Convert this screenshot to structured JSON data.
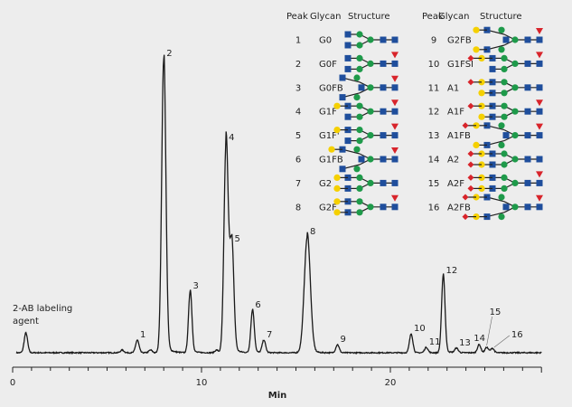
{
  "chart_data": {
    "type": "line",
    "title": "",
    "xlabel": "Min",
    "ylabel": "",
    "xlim": [
      0,
      28
    ],
    "xticks_major": [
      0,
      10,
      20
    ],
    "xtick_minor_step": 1,
    "grid": false,
    "colors": {
      "trace": "#1a1a1a",
      "background": "#ededed"
    },
    "annotation": "2-AB labeling agent",
    "reagent_peak": {
      "x": 0.7,
      "y": 22
    },
    "minor_peaks": [
      {
        "x": 5.8,
        "y": 3
      },
      {
        "x": 7.3,
        "y": 3
      },
      {
        "x": 10.8,
        "y": 3
      }
    ],
    "peaks": [
      {
        "label": "1",
        "x": 6.6,
        "y": 14
      },
      {
        "label": "2",
        "x": 8.0,
        "y": 325
      },
      {
        "label": "3",
        "x": 9.4,
        "y": 68
      },
      {
        "label": "4",
        "x": 11.3,
        "y": 232
      },
      {
        "label": "5",
        "x": 11.6,
        "y": 120
      },
      {
        "label": "6",
        "x": 12.7,
        "y": 47
      },
      {
        "label": "7",
        "x": 13.3,
        "y": 14
      },
      {
        "label": "8",
        "x": 15.6,
        "y": 128
      },
      {
        "label": "9",
        "x": 17.2,
        "y": 9
      },
      {
        "label": "10",
        "x": 21.1,
        "y": 21
      },
      {
        "label": "11",
        "x": 21.9,
        "y": 6
      },
      {
        "label": "12",
        "x": 22.8,
        "y": 85
      },
      {
        "label": "13",
        "x": 23.5,
        "y": 5
      },
      {
        "label": "14",
        "x": 24.7,
        "y": 9
      },
      {
        "label": "15",
        "x": 25.1,
        "y": 6
      },
      {
        "label": "16",
        "x": 25.4,
        "y": 5
      }
    ]
  },
  "legend_table": {
    "headers": {
      "peak": "Peak",
      "glycan": "Glycan",
      "structure": "Structure"
    },
    "symbol_colors": {
      "glcnac": "#1f4e9c",
      "mannose": "#1e9a4a",
      "galactose": "#f5d000",
      "fucose": "#d8242b",
      "sialic": "#d8242b"
    },
    "rows": [
      {
        "peak": "1",
        "glycan": "G0",
        "structure": {
          "fuc": false,
          "bisect": false,
          "gal": 0,
          "sia": 0
        }
      },
      {
        "peak": "2",
        "glycan": "G0F",
        "structure": {
          "fuc": true,
          "bisect": false,
          "gal": 0,
          "sia": 0
        }
      },
      {
        "peak": "3",
        "glycan": "G0FB",
        "structure": {
          "fuc": true,
          "bisect": true,
          "gal": 0,
          "sia": 0
        }
      },
      {
        "peak": "4",
        "glycan": "G1F",
        "structure": {
          "fuc": true,
          "bisect": false,
          "gal": 1,
          "sia": 0
        }
      },
      {
        "peak": "5",
        "glycan": "G1F'",
        "structure": {
          "fuc": true,
          "bisect": false,
          "gal": 1,
          "sia": 0
        }
      },
      {
        "peak": "6",
        "glycan": "G1FB",
        "structure": {
          "fuc": true,
          "bisect": true,
          "gal": 1,
          "sia": 0
        }
      },
      {
        "peak": "7",
        "glycan": "G2",
        "structure": {
          "fuc": false,
          "bisect": false,
          "gal": 2,
          "sia": 0
        }
      },
      {
        "peak": "8",
        "glycan": "G2F",
        "structure": {
          "fuc": true,
          "bisect": false,
          "gal": 2,
          "sia": 0
        }
      },
      {
        "peak": "9",
        "glycan": "G2FB",
        "structure": {
          "fuc": true,
          "bisect": true,
          "gal": 2,
          "sia": 0
        }
      },
      {
        "peak": "10",
        "glycan": "G1FSI",
        "structure": {
          "fuc": true,
          "bisect": false,
          "gal": 1,
          "sia": 1
        }
      },
      {
        "peak": "11",
        "glycan": "A1",
        "structure": {
          "fuc": false,
          "bisect": false,
          "gal": 2,
          "sia": 1
        }
      },
      {
        "peak": "12",
        "glycan": "A1F",
        "structure": {
          "fuc": true,
          "bisect": false,
          "gal": 2,
          "sia": 1
        }
      },
      {
        "peak": "13",
        "glycan": "A1FB",
        "structure": {
          "fuc": true,
          "bisect": true,
          "gal": 2,
          "sia": 1
        }
      },
      {
        "peak": "14",
        "glycan": "A2",
        "structure": {
          "fuc": false,
          "bisect": false,
          "gal": 2,
          "sia": 2
        }
      },
      {
        "peak": "15",
        "glycan": "A2F",
        "structure": {
          "fuc": true,
          "bisect": false,
          "gal": 2,
          "sia": 2
        }
      },
      {
        "peak": "16",
        "glycan": "A2FB",
        "structure": {
          "fuc": true,
          "bisect": true,
          "gal": 2,
          "sia": 2
        }
      }
    ]
  }
}
